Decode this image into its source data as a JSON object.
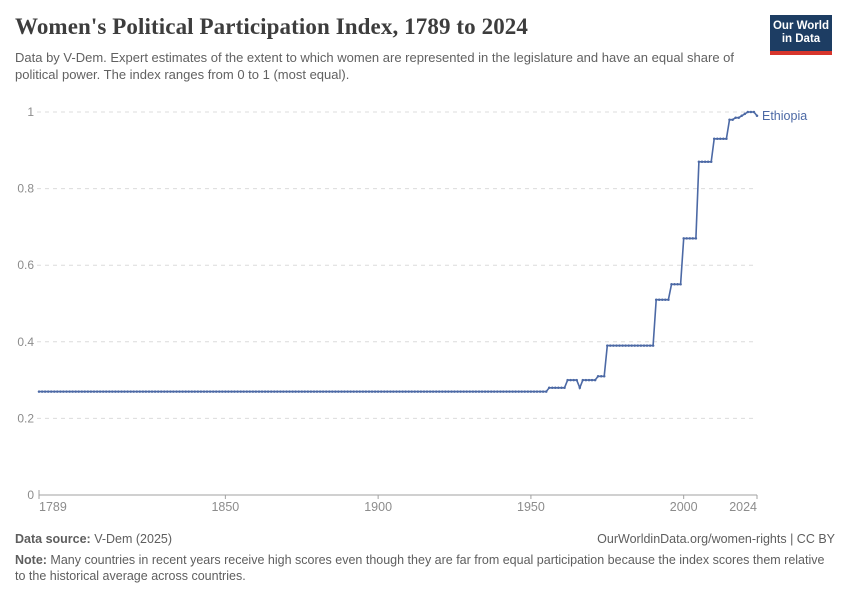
{
  "header": {
    "title": "Women's Political Participation Index, 1789 to 2024",
    "subtitle": "Data by V-Dem. Expert estimates of the extent to which women are represented in the legislature and have an equal share of political power. The index ranges from 0 to 1 (most equal)."
  },
  "logo": {
    "line1": "Our World",
    "line2": "in Data"
  },
  "chart_data": {
    "type": "line",
    "title": "Women's Political Participation Index, 1789 to 2024",
    "series": [
      {
        "name": "Ethiopia",
        "step_points": [
          [
            1789,
            0.27
          ],
          [
            1956,
            0.28
          ],
          [
            1962,
            0.3
          ],
          [
            1966,
            0.28
          ],
          [
            1967,
            0.3
          ],
          [
            1972,
            0.31
          ],
          [
            1975,
            0.39
          ],
          [
            1991,
            0.51
          ],
          [
            1996,
            0.55
          ],
          [
            2000,
            0.67
          ],
          [
            2005,
            0.87
          ],
          [
            2010,
            0.93
          ],
          [
            2015,
            0.98
          ],
          [
            2017,
            0.985
          ],
          [
            2019,
            0.99
          ],
          [
            2020,
            0.995
          ],
          [
            2021,
            1.0
          ],
          [
            2024,
            0.99
          ]
        ]
      }
    ],
    "xlim": [
      1789,
      2024
    ],
    "ylim": [
      0,
      1
    ],
    "xticks": [
      1789,
      1850,
      1900,
      1950,
      2000,
      2024
    ],
    "yticks": [
      0,
      0.2,
      0.4,
      0.6,
      0.8,
      1
    ],
    "grid": "dashed-horizontal",
    "legend_position": "end-of-line-label",
    "entity_label": "Ethiopia"
  },
  "colors": {
    "line": "#4c69a5",
    "entity_label": "#4c69a5",
    "grid": "#dcdcdc",
    "axis": "#a1a1a1",
    "tick_text": "#8c8c8c",
    "logo_bg": "#1d3d63",
    "logo_red": "#d7352c"
  },
  "footer": {
    "source_label": "Data source:",
    "source_value": " V-Dem (2025)",
    "rights": "OurWorldinData.org/women-rights | CC BY",
    "note_label": "Note:",
    "note_text": " Many countries in recent years receive high scores even though they are far from equal participation because the index scores them relative to the historical average across countries."
  }
}
